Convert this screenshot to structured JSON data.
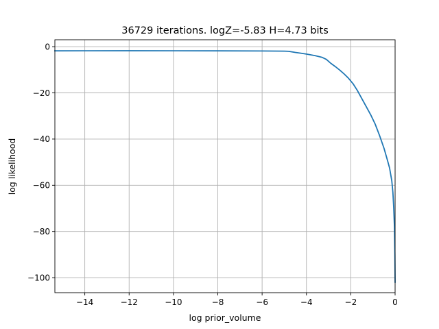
{
  "chart_data": {
    "type": "line",
    "title": "36729 iterations. logZ=-5.83 H=4.73 bits",
    "xlabel": "log prior_volume",
    "ylabel": "log likelihood",
    "xlim": [
      -15.35,
      0
    ],
    "ylim": [
      -106.5,
      3
    ],
    "xticks": [
      -14,
      -12,
      -10,
      -8,
      -6,
      -4,
      -2,
      0
    ],
    "yticks": [
      0,
      -20,
      -40,
      -60,
      -80,
      -100
    ],
    "xtick_labels": [
      "−14",
      "−12",
      "−10",
      "−8",
      "−6",
      "−4",
      "−2",
      "0"
    ],
    "ytick_labels": [
      "0",
      "−20",
      "−40",
      "−60",
      "−80",
      "−100"
    ],
    "grid": true,
    "color": "#1f77b4",
    "series": [
      {
        "x": [
          -15.35,
          -14,
          -12,
          -10,
          -8,
          -6,
          -5.5,
          -5,
          -4.8,
          -4.5,
          -4.2,
          -4,
          -3.6,
          -3.3,
          -3.1,
          -2.9,
          -2.7,
          -2.5,
          -2.3,
          -2.1,
          -1.9,
          -1.7,
          -1.5,
          -1.3,
          -1.1,
          -0.9,
          -0.7,
          -0.5,
          -0.35,
          -0.25,
          -0.15,
          -0.1,
          -0.06,
          -0.03,
          -0.01,
          0
        ],
        "y": [
          -1.8,
          -1.78,
          -1.77,
          -1.78,
          -1.8,
          -1.85,
          -1.9,
          -1.93,
          -2.0,
          -2.5,
          -2.9,
          -3.2,
          -3.9,
          -4.6,
          -5.5,
          -7.2,
          -8.6,
          -10.1,
          -11.8,
          -13.7,
          -16.0,
          -19.0,
          -22.5,
          -26.0,
          -29.5,
          -33.5,
          -38.5,
          -44.0,
          -49.0,
          -52.5,
          -58.0,
          -63.0,
          -70.0,
          -78.0,
          -90.0,
          -102.0
        ]
      }
    ]
  }
}
